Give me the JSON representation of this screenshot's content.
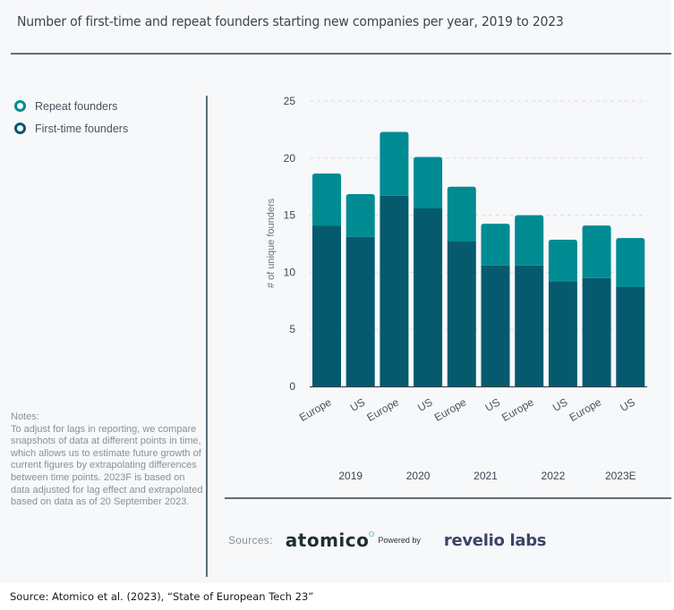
{
  "title": "Number of first-time and repeat founders starting new companies per year, 2019 to 2023",
  "legend": [
    {
      "label": "Repeat founders",
      "color": "#008b93"
    },
    {
      "label": "First-time founders",
      "color": "#065a6e"
    }
  ],
  "notes": {
    "heading": "Notes:",
    "body": "To adjust for lags in reporting, we compare snapshots of data at different points in time, which allows us to estimate future growth of current figures by extrapolating differences between time points. 2023F is based on data adjusted for lag effect and extrapolated based on data as of 20 September 2023."
  },
  "sources": {
    "label": "Sources:",
    "atomico": "atomico",
    "powered_by": "Powered by",
    "revelio": "revelio labs"
  },
  "caption": "Source: Atomico et al. (2023), “State of European Tech 23”",
  "chart_data": {
    "type": "bar",
    "stacked": true,
    "title": "Number of first-time and repeat founders starting new companies per year, 2019 to 2023",
    "xlabel": "",
    "ylabel": "# of unique founders",
    "ylim": [
      0,
      25
    ],
    "yticks": [
      0,
      5,
      10,
      15,
      20,
      25
    ],
    "grid": true,
    "legend_position": "left",
    "categories": [
      "Europe",
      "US",
      "Europe",
      "US",
      "Europe",
      "US",
      "Europe",
      "US",
      "Europe",
      "US"
    ],
    "groups": [
      "2019",
      "2020",
      "2021",
      "2022",
      "2023E"
    ],
    "series": [
      {
        "name": "First-time founders",
        "color": "#065a6e",
        "values": [
          14.1,
          13.1,
          16.7,
          15.6,
          12.7,
          10.6,
          10.6,
          9.2,
          9.5,
          8.7
        ]
      },
      {
        "name": "Repeat founders",
        "color": "#008b93",
        "values": [
          4.55,
          3.75,
          5.6,
          4.5,
          4.8,
          3.65,
          4.4,
          3.65,
          4.6,
          4.3
        ]
      }
    ],
    "totals": [
      18.65,
      16.85,
      22.3,
      20.1,
      17.5,
      14.25,
      15.0,
      12.85,
      14.1,
      13.0
    ]
  }
}
